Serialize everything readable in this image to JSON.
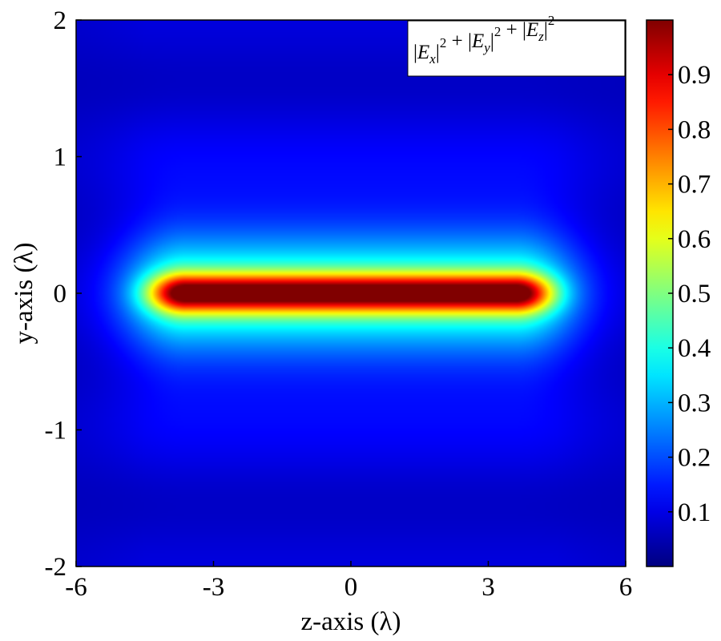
{
  "chart_data": {
    "type": "heatmap",
    "title": "",
    "xlabel": "z-axis (λ)",
    "ylabel": "y-axis (λ)",
    "xlim": [
      -6,
      6
    ],
    "ylim": [
      -2,
      2
    ],
    "x_ticks": [
      -6,
      -3,
      0,
      3,
      6
    ],
    "x_tick_labels": [
      "-6",
      "-3",
      "0",
      "3",
      "6"
    ],
    "y_ticks": [
      -2,
      -1,
      0,
      1,
      2
    ],
    "y_tick_labels": [
      "-2",
      "-1",
      "0",
      "1",
      "2"
    ],
    "colormap": "jet",
    "colorbar": {
      "range": [
        0,
        1
      ],
      "ticks": [
        0.1,
        0.2,
        0.3,
        0.4,
        0.5,
        0.6,
        0.7,
        0.8,
        0.9
      ],
      "tick_labels": [
        "0.1",
        "0.2",
        "0.3",
        "0.4",
        "0.5",
        "0.6",
        "0.7",
        "0.8",
        "0.9"
      ]
    },
    "legend": {
      "placement": "top-right",
      "terms": [
        {
          "letter": "E",
          "sub": "x",
          "sup": "2"
        },
        {
          "letter": "E",
          "sub": "y",
          "sup": "2"
        },
        {
          "letter": "E",
          "sub": "z",
          "sup": "2"
        }
      ],
      "operator": "+"
    },
    "field": {
      "description_note": "",
      "peak_value": 1.0,
      "focal_line_z_range": [
        -3.6,
        3.6
      ],
      "focal_line_y": 0,
      "background_value": 0.06
    },
    "grid": false
  }
}
